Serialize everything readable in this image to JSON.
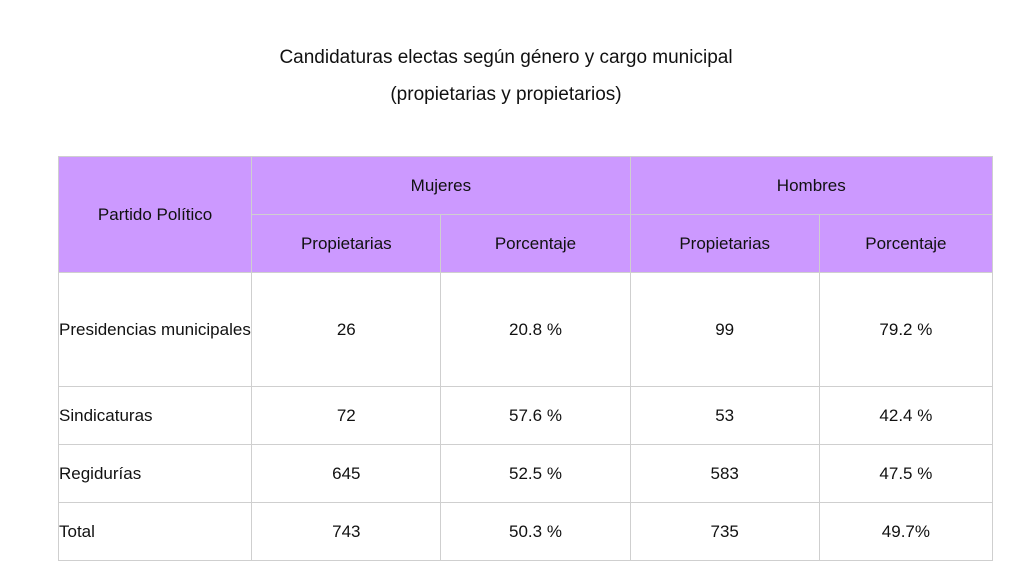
{
  "title": {
    "line1": "Candidaturas electas según género y cargo municipal",
    "line2": "(propietarias y propietarios)"
  },
  "table": {
    "corner_header": "Partido Político",
    "groups": [
      "Mujeres",
      "Hombres"
    ],
    "subheaders": [
      "Propietarias",
      "Porcentaje",
      "Propietarias",
      "Porcentaje"
    ],
    "rows": [
      {
        "label": "Presidencias municipales",
        "cells": [
          "26",
          "20.8 %",
          "99",
          "79.2 %"
        ]
      },
      {
        "label": "Sindicaturas",
        "cells": [
          "72",
          "57.6 %",
          "53",
          "42.4 %"
        ]
      },
      {
        "label": "Regidurías",
        "cells": [
          "645",
          "52.5 %",
          "583",
          "47.5 %"
        ]
      },
      {
        "label": "Total",
        "cells": [
          "743",
          "50.3 %",
          "735",
          "49.7%"
        ]
      }
    ]
  },
  "colors": {
    "header_background": "#cc99ff",
    "grid_line": "#cfcfcf"
  }
}
